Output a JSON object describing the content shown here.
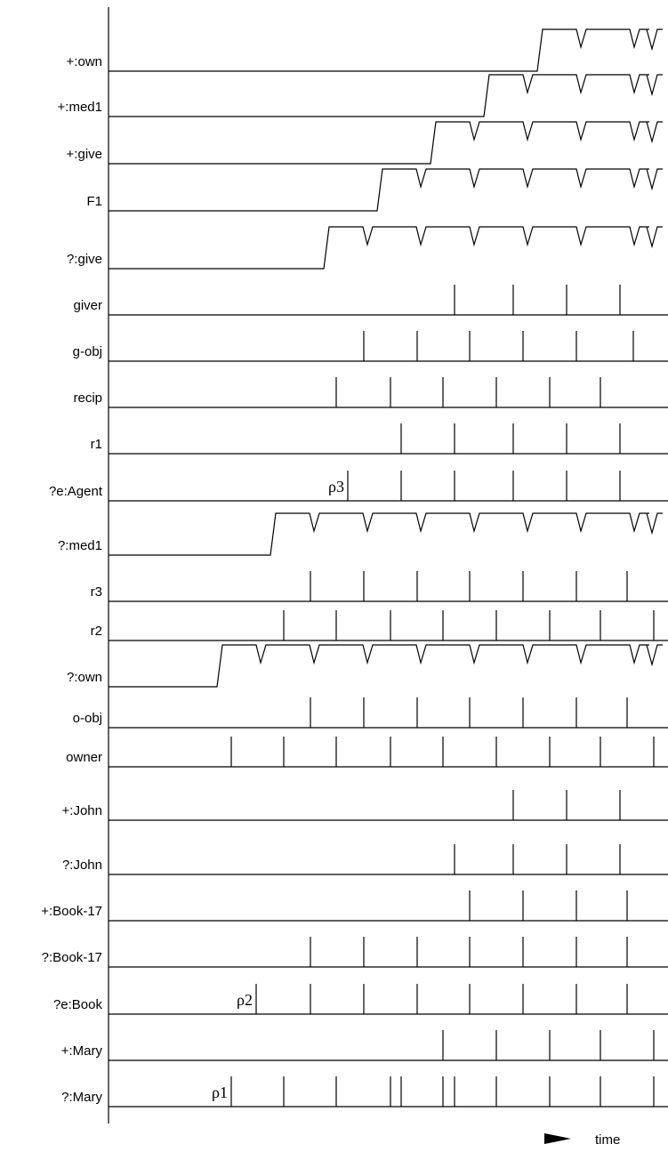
{
  "rows": [
    {
      "label": "+:own",
      "kind": "wave",
      "start": 604
    },
    {
      "label": "+:med1",
      "kind": "wave",
      "start": 544
    },
    {
      "label": "+:give",
      "kind": "wave",
      "start": 484
    },
    {
      "label": "F1",
      "kind": "wave",
      "start": 424
    },
    {
      "label": "?:give",
      "kind": "wave",
      "start": 364
    },
    {
      "label": "giver",
      "kind": "spike",
      "spikes": [
        511,
        577,
        637,
        697
      ]
    },
    {
      "label": "g-obj",
      "kind": "spike",
      "spikes": [
        409,
        469,
        528,
        588,
        648,
        712
      ]
    },
    {
      "label": "recip",
      "kind": "spike",
      "spikes": [
        378,
        439,
        498,
        558,
        618,
        675
      ]
    },
    {
      "label": "r1",
      "kind": "spike",
      "spikes": [
        451,
        511,
        577,
        637,
        697
      ]
    },
    {
      "label": "?e:Agent",
      "kind": "spike",
      "spikes": [
        391,
        451,
        511,
        577,
        637,
        697
      ],
      "marker": {
        "text": "ρ3",
        "at": 391
      }
    },
    {
      "label": "?:med1",
      "kind": "wave",
      "start": 304
    },
    {
      "label": "r3",
      "kind": "spike",
      "spikes": [
        349,
        409,
        469,
        528,
        588,
        648,
        705
      ]
    },
    {
      "label": "r2",
      "kind": "spike",
      "spikes": [
        319,
        378,
        439,
        498,
        558,
        618,
        675,
        735
      ]
    },
    {
      "label": "?:own",
      "kind": "wave",
      "start": 244
    },
    {
      "label": "o-obj",
      "kind": "spike",
      "spikes": [
        349,
        409,
        469,
        528,
        588,
        648,
        705
      ]
    },
    {
      "label": "owner",
      "kind": "spike",
      "spikes": [
        260,
        319,
        378,
        439,
        498,
        558,
        618,
        675,
        735
      ]
    },
    {
      "label": "+:John",
      "kind": "spike",
      "spikes": [
        577,
        637,
        697
      ]
    },
    {
      "label": "?:John",
      "kind": "spike",
      "spikes": [
        511,
        577,
        637,
        697
      ]
    },
    {
      "label": "+:Book-17",
      "kind": "spike",
      "spikes": [
        528,
        588,
        648,
        705
      ]
    },
    {
      "label": "?:Book-17",
      "kind": "spike",
      "spikes": [
        349,
        409,
        469,
        528,
        588,
        648,
        705
      ]
    },
    {
      "label": "?e:Book",
      "kind": "spike",
      "spikes": [
        288,
        349,
        409,
        469,
        528,
        588,
        648,
        705
      ],
      "marker": {
        "text": "ρ2",
        "at": 288
      }
    },
    {
      "label": "+:Mary",
      "kind": "spike",
      "spikes": [
        498,
        558,
        618,
        675,
        735
      ]
    },
    {
      "label": "?:Mary",
      "kind": "spike",
      "spikes": [
        260,
        319,
        378,
        439,
        451,
        498,
        511,
        558,
        618,
        675,
        735
      ],
      "marker": {
        "text": "ρ1",
        "at": 260
      }
    }
  ],
  "time_axis": {
    "label": "time"
  }
}
